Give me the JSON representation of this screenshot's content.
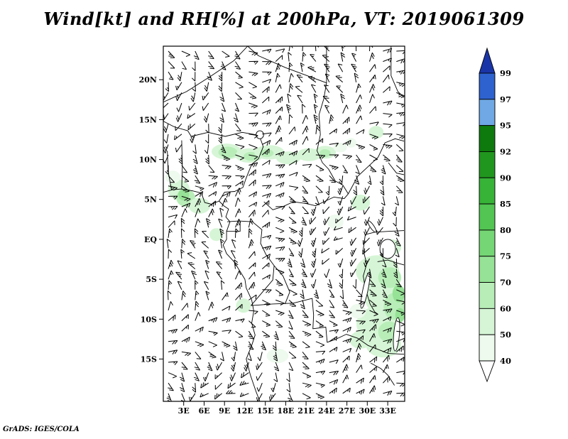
{
  "title": "Wind[kt] and RH[%] at 200hPa, VT: 2019061309",
  "footer_credit": "GrADS: IGES/COLA",
  "chart_data": {
    "type": "map",
    "subtype": "wind-barbs-with-rh-shading",
    "title": "Wind[kt] and RH[%] at 200hPa, VT: 2019061309",
    "variable": "Wind [kt] and RH [%]",
    "pressure_level": "200hPa",
    "valid_time": "2019061309",
    "domain": {
      "lon_min": 0,
      "lon_max": 35.5,
      "lat_min": -20.3,
      "lat_max": 24.2
    },
    "x_axis": {
      "tick_labels": [
        "3E",
        "6E",
        "9E",
        "12E",
        "15E",
        "18E",
        "21E",
        "24E",
        "27E",
        "30E",
        "33E"
      ],
      "tick_lons": [
        3,
        6,
        9,
        12,
        15,
        18,
        21,
        24,
        27,
        30,
        33
      ]
    },
    "y_axis": {
      "tick_labels": [
        "20N",
        "15N",
        "10N",
        "5N",
        "EQ",
        "5S",
        "10S",
        "15S"
      ],
      "tick_lats": [
        20,
        15,
        10,
        5,
        0,
        -5,
        -10,
        -15
      ]
    },
    "colorbar": {
      "tick_labels": [
        "99",
        "97",
        "95",
        "92",
        "90",
        "85",
        "80",
        "75",
        "70",
        "60",
        "50",
        "40"
      ],
      "colors_top_to_bottom": [
        "#1a35a8",
        "#2e62cf",
        "#6fa8e4",
        "#0e7a0e",
        "#21961f",
        "#37b337",
        "#52c552",
        "#74d674",
        "#96e296",
        "#b8edb8",
        "#d6f5d6",
        "#edfaed",
        "#ffffff"
      ]
    },
    "rh_shading_blobs": [
      {
        "lon": 9.3,
        "lat": 11.0,
        "rx": 2.2,
        "ry": 1.0,
        "color": "#d6f5d6"
      },
      {
        "lon": 9.5,
        "lat": 10.9,
        "rx": 1.4,
        "ry": 0.7,
        "color": "#b8edb8"
      },
      {
        "lon": 12.6,
        "lat": 10.5,
        "rx": 2.0,
        "ry": 0.9,
        "color": "#d6f5d6"
      },
      {
        "lon": 12.9,
        "lat": 10.4,
        "rx": 1.1,
        "ry": 0.55,
        "color": "#b8edb8"
      },
      {
        "lon": 15.6,
        "lat": 10.9,
        "rx": 2.2,
        "ry": 0.9,
        "color": "#d6f5d6"
      },
      {
        "lon": 15.2,
        "lat": 10.8,
        "rx": 1.0,
        "ry": 0.5,
        "color": "#b8edb8"
      },
      {
        "lon": 18.4,
        "lat": 10.2,
        "rx": 1.8,
        "ry": 0.8,
        "color": "#d6f5d6"
      },
      {
        "lon": 21.4,
        "lat": 10.6,
        "rx": 1.8,
        "ry": 0.8,
        "color": "#d6f5d6"
      },
      {
        "lon": 23.8,
        "lat": 10.9,
        "rx": 1.6,
        "ry": 0.8,
        "color": "#d6f5d6"
      },
      {
        "lon": 23.8,
        "lat": 10.8,
        "rx": 0.8,
        "ry": 0.5,
        "color": "#b8edb8"
      },
      {
        "lon": 26.0,
        "lat": 11.5,
        "rx": 1.0,
        "ry": 0.6,
        "color": "#edfaed"
      },
      {
        "lon": 2.3,
        "lat": 6.2,
        "rx": 1.6,
        "ry": 1.3,
        "color": "#d6f5d6"
      },
      {
        "lon": 3.3,
        "lat": 5.2,
        "rx": 1.4,
        "ry": 1.1,
        "color": "#b8edb8"
      },
      {
        "lon": 3.0,
        "lat": 5.6,
        "rx": 0.8,
        "ry": 0.7,
        "color": "#96e296"
      },
      {
        "lon": 5.3,
        "lat": 4.2,
        "rx": 1.6,
        "ry": 1.0,
        "color": "#d6f5d6"
      },
      {
        "lon": 1.4,
        "lat": 7.8,
        "rx": 1.1,
        "ry": 0.8,
        "color": "#edfaed"
      },
      {
        "lon": 7.8,
        "lat": 0.6,
        "rx": 1.0,
        "ry": 0.8,
        "color": "#d6f5d6"
      },
      {
        "lon": 29.0,
        "lat": 4.6,
        "rx": 1.4,
        "ry": 1.0,
        "color": "#d6f5d6"
      },
      {
        "lon": 31.3,
        "lat": 13.4,
        "rx": 1.1,
        "ry": 0.8,
        "color": "#d6f5d6"
      },
      {
        "lon": 27.6,
        "lat": 12.1,
        "rx": 0.8,
        "ry": 0.6,
        "color": "#edfaed"
      },
      {
        "lon": 33.5,
        "lat": -1.0,
        "rx": 1.5,
        "ry": 1.0,
        "color": "#d6f5d6"
      },
      {
        "lon": 31.5,
        "lat": -4.0,
        "rx": 3.2,
        "ry": 2.0,
        "color": "#d6f5d6"
      },
      {
        "lon": 32.6,
        "lat": -7.2,
        "rx": 3.0,
        "ry": 2.4,
        "color": "#d6f5d6"
      },
      {
        "lon": 31.6,
        "lat": -10.6,
        "rx": 3.2,
        "ry": 2.2,
        "color": "#d6f5d6"
      },
      {
        "lon": 32.4,
        "lat": -13.2,
        "rx": 2.6,
        "ry": 1.6,
        "color": "#d6f5d6"
      },
      {
        "lon": 33.3,
        "lat": -4.8,
        "rx": 1.7,
        "ry": 1.3,
        "color": "#b8edb8"
      },
      {
        "lon": 34.0,
        "lat": -8.4,
        "rx": 1.6,
        "ry": 1.7,
        "color": "#b8edb8"
      },
      {
        "lon": 33.2,
        "lat": -11.6,
        "rx": 1.6,
        "ry": 1.3,
        "color": "#b8edb8"
      },
      {
        "lon": 34.6,
        "lat": -6.8,
        "rx": 0.9,
        "ry": 1.1,
        "color": "#96e296"
      },
      {
        "lon": 34.8,
        "lat": -9.5,
        "rx": 0.7,
        "ry": 0.9,
        "color": "#96e296"
      },
      {
        "lon": 29.0,
        "lat": -12.6,
        "rx": 1.6,
        "ry": 1.1,
        "color": "#d6f5d6"
      },
      {
        "lon": 28.6,
        "lat": -9.0,
        "rx": 1.2,
        "ry": 0.9,
        "color": "#edfaed"
      },
      {
        "lon": 11.8,
        "lat": -8.3,
        "rx": 1.1,
        "ry": 0.9,
        "color": "#d6f5d6"
      },
      {
        "lon": 16.8,
        "lat": -14.6,
        "rx": 1.6,
        "ry": 0.9,
        "color": "#edfaed"
      },
      {
        "lon": 25.3,
        "lat": 2.2,
        "rx": 1.2,
        "ry": 0.9,
        "color": "#edfaed"
      }
    ],
    "map_paths": [
      {
        "name": "coastline-gulf-of-guinea-to-angola",
        "pts": [
          [
            0,
            5.9
          ],
          [
            1.3,
            6.2
          ],
          [
            2.6,
            6.3
          ],
          [
            4.2,
            6.1
          ],
          [
            5.6,
            5.8
          ],
          [
            6.1,
            4.6
          ],
          [
            7.1,
            4.4
          ],
          [
            8.2,
            4.8
          ],
          [
            8.9,
            4.2
          ],
          [
            9.6,
            3.8
          ],
          [
            9.2,
            2.8
          ],
          [
            9.8,
            2.2
          ],
          [
            9.3,
            1.0
          ],
          [
            9.3,
            0.0
          ],
          [
            8.8,
            -0.7
          ],
          [
            9.3,
            -1.8
          ],
          [
            10.4,
            -2.8
          ],
          [
            11.2,
            -3.9
          ],
          [
            12.0,
            -5.0
          ],
          [
            12.2,
            -6.1
          ],
          [
            13.0,
            -7.6
          ],
          [
            13.3,
            -9.0
          ],
          [
            13.0,
            -10.5
          ],
          [
            13.5,
            -12.0
          ],
          [
            13.0,
            -13.3
          ],
          [
            12.2,
            -15.0
          ],
          [
            12.8,
            -17.0
          ],
          [
            13.6,
            -19.0
          ],
          [
            14.2,
            -20.3
          ]
        ]
      },
      {
        "name": "border-sahel-nigeria-north",
        "pts": [
          [
            0,
            14.8
          ],
          [
            1.6,
            14.1
          ],
          [
            3.6,
            13.6
          ],
          [
            4.1,
            12.9
          ],
          [
            6.6,
            13.4
          ],
          [
            9.1,
            12.9
          ],
          [
            11.6,
            13.4
          ],
          [
            13.6,
            13.1
          ],
          [
            14.2,
            12.8
          ]
        ]
      },
      {
        "name": "border-sahara-niger",
        "pts": [
          [
            0,
            17.2
          ],
          [
            3.4,
            18.5
          ],
          [
            6.9,
            20.4
          ],
          [
            10.4,
            22.4
          ],
          [
            12.4,
            24.2
          ]
        ]
      },
      {
        "name": "border-chad-libya",
        "pts": [
          [
            12.4,
            24.2
          ],
          [
            14.0,
            23.0
          ],
          [
            18.0,
            21.5
          ],
          [
            24.0,
            19.6
          ]
        ]
      },
      {
        "name": "border-chad-sudan",
        "pts": [
          [
            24.0,
            24.2
          ],
          [
            24.0,
            19.6
          ],
          [
            23.6,
            17.6
          ],
          [
            22.9,
            15.6
          ],
          [
            23.1,
            13.1
          ],
          [
            22.6,
            11.1
          ],
          [
            23.4,
            9.6
          ],
          [
            24.3,
            8.8
          ],
          [
            25.3,
            7.3
          ],
          [
            26.4,
            6.8
          ],
          [
            27.2,
            5.7
          ]
        ]
      },
      {
        "name": "border-car-south",
        "pts": [
          [
            14.8,
            4.7
          ],
          [
            16.1,
            3.7
          ],
          [
            17.6,
            4.1
          ],
          [
            19.1,
            4.7
          ],
          [
            20.9,
            4.5
          ],
          [
            22.4,
            4.2
          ],
          [
            23.6,
            4.7
          ],
          [
            25.1,
            5.3
          ],
          [
            26.6,
            5.1
          ],
          [
            27.2,
            5.7
          ]
        ]
      },
      {
        "name": "border-cameroon-nigeria",
        "pts": [
          [
            14.2,
            12.8
          ],
          [
            14.7,
            11.6
          ],
          [
            14.0,
            10.1
          ],
          [
            13.0,
            9.4
          ],
          [
            12.2,
            7.7
          ],
          [
            11.7,
            6.5
          ],
          [
            10.5,
            6.0
          ],
          [
            9.0,
            5.9
          ],
          [
            8.2,
            4.8
          ]
        ]
      },
      {
        "name": "border-benin",
        "pts": [
          [
            2.7,
            12.4
          ],
          [
            2.8,
            9.1
          ],
          [
            2.7,
            6.3
          ]
        ]
      },
      {
        "name": "border-togo-ghana",
        "pts": [
          [
            0.6,
            11.1
          ],
          [
            0.7,
            8.6
          ],
          [
            1.2,
            6.2
          ]
        ]
      },
      {
        "name": "border-congo-basin",
        "pts": [
          [
            9.4,
            2.2
          ],
          [
            11.1,
            2.3
          ],
          [
            13.1,
            2.2
          ],
          [
            14.5,
            1.2
          ],
          [
            14.3,
            -0.5
          ],
          [
            15.1,
            -1.9
          ],
          [
            16.3,
            -3.3
          ],
          [
            16.1,
            -5.1
          ],
          [
            15.1,
            -6.1
          ],
          [
            13.9,
            -7.3
          ],
          [
            12.9,
            -8.3
          ]
        ]
      },
      {
        "name": "border-drc-kasai",
        "pts": [
          [
            16.3,
            -3.3
          ],
          [
            17.6,
            -4.6
          ],
          [
            18.6,
            -6.6
          ],
          [
            17.9,
            -8.1
          ]
        ]
      },
      {
        "name": "border-angola-zambia",
        "pts": [
          [
            12.9,
            -8.3
          ],
          [
            16.1,
            -8.1
          ],
          [
            19.1,
            -8.0
          ],
          [
            21.9,
            -7.4
          ],
          [
            22.1,
            -9.5
          ],
          [
            22.0,
            -11.2
          ],
          [
            23.9,
            -11.0
          ],
          [
            24.1,
            -12.9
          ],
          [
            25.4,
            -12.5
          ],
          [
            26.9,
            -11.9
          ],
          [
            28.6,
            -12.4
          ],
          [
            30.1,
            -13.3
          ],
          [
            33.1,
            -14.3
          ],
          [
            35.4,
            -14.4
          ]
        ]
      },
      {
        "name": "border-albertine-rift",
        "pts": [
          [
            29.7,
            0.6
          ],
          [
            29.4,
            -1.3
          ],
          [
            29.9,
            -3.1
          ],
          [
            29.4,
            -4.6
          ],
          [
            29.7,
            -6.1
          ],
          [
            30.4,
            -8.1
          ],
          [
            31.1,
            -9.1
          ],
          [
            31.6,
            -9.4
          ]
        ]
      },
      {
        "name": "border-uganda-kenya",
        "pts": [
          [
            29.7,
            0.6
          ],
          [
            31.1,
            0.9
          ],
          [
            33.1,
            1.0
          ],
          [
            35.4,
            1.1
          ]
        ]
      },
      {
        "name": "border-south-sudan",
        "pts": [
          [
            27.2,
            5.7
          ],
          [
            28.6,
            7.9
          ],
          [
            30.1,
            9.1
          ],
          [
            31.6,
            10.3
          ],
          [
            32.6,
            12.1
          ],
          [
            34.1,
            12.6
          ],
          [
            35.4,
            12.3
          ]
        ]
      },
      {
        "name": "border-ethiopia-west",
        "pts": [
          [
            33.1,
            9.6
          ],
          [
            34.3,
            8.3
          ],
          [
            35.4,
            8.1
          ]
        ]
      },
      {
        "name": "border-red-sea-hills",
        "pts": [
          [
            33.5,
            24.2
          ],
          [
            33.5,
            20.5
          ],
          [
            34.5,
            18.5
          ],
          [
            35.4,
            17.8
          ]
        ]
      },
      {
        "name": "border-eq-guinea-gabon",
        "pts": [
          [
            9.3,
            1.0
          ],
          [
            11.3,
            1.0
          ],
          [
            11.3,
            2.25
          ]
        ]
      },
      {
        "name": "border-victoria-south",
        "pts": [
          [
            31.5,
            -2.8
          ],
          [
            33.0,
            -2.6
          ],
          [
            34.5,
            -3.0
          ],
          [
            35.4,
            -3.2
          ]
        ]
      },
      {
        "name": "border-mozambique",
        "pts": [
          [
            30.5,
            -15.5
          ],
          [
            32.0,
            -16.2
          ],
          [
            33.0,
            -17.0
          ],
          [
            34.0,
            -18.3
          ]
        ]
      }
    ],
    "lakes": [
      {
        "name": "lake-victoria",
        "lon": 33.0,
        "lat": -1.2,
        "rx": 1.15,
        "ry": 1.2,
        "rot": 0
      },
      {
        "name": "lake-tanganyika",
        "lon": 29.7,
        "lat": -6.4,
        "rx": 0.38,
        "ry": 2.3,
        "rot": 12
      },
      {
        "name": "lake-malawi",
        "lon": 34.3,
        "lat": -11.9,
        "rx": 0.42,
        "ry": 2.1,
        "rot": 5
      },
      {
        "name": "lake-albert",
        "lon": 30.7,
        "lat": 1.6,
        "rx": 0.28,
        "ry": 0.85,
        "rot": -35
      },
      {
        "name": "lake-chad",
        "lon": 14.2,
        "lat": 13.1,
        "rx": 0.55,
        "ry": 0.5,
        "rot": 0
      }
    ]
  }
}
